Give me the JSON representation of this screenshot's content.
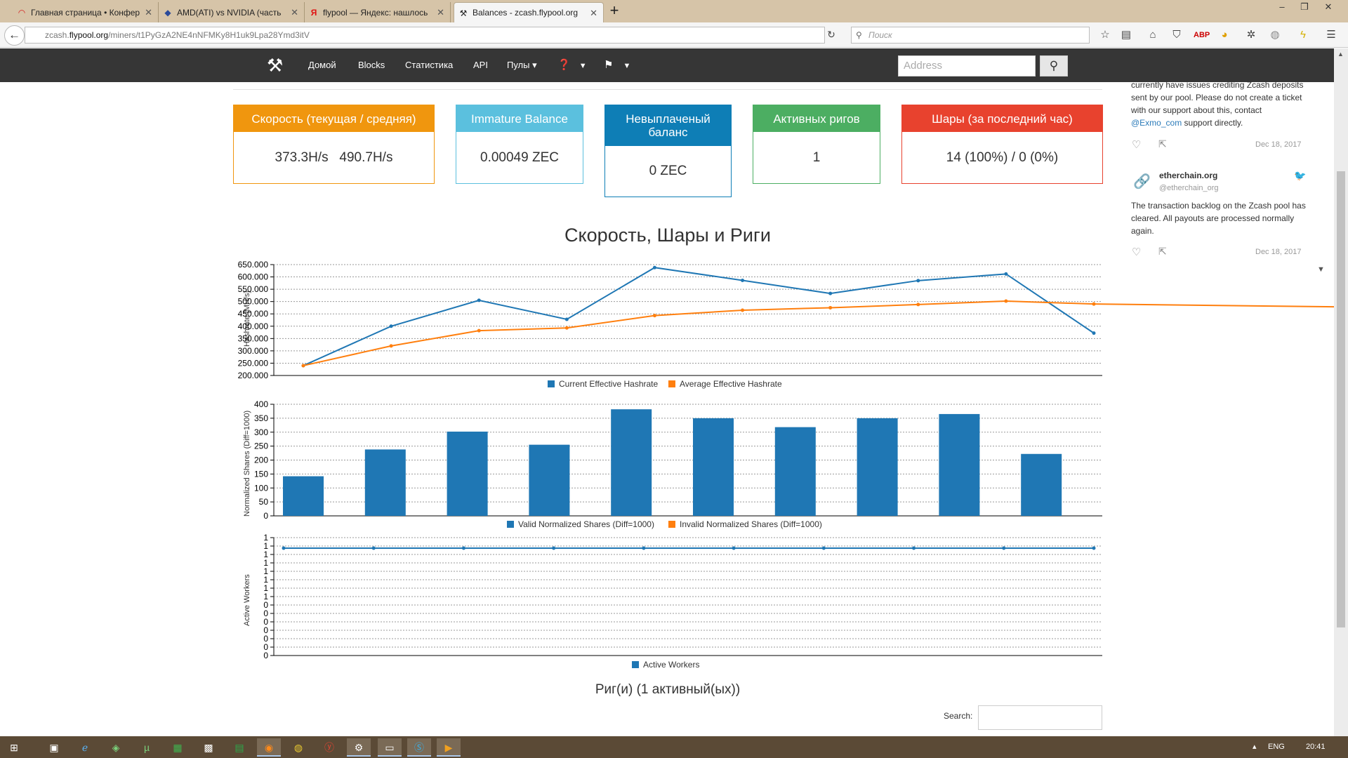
{
  "browser": {
    "tabs": [
      {
        "label": "Главная страница • Конфер",
        "icon": "red-arc-icon"
      },
      {
        "label": "AMD(ATI) vs NVIDIA (часть",
        "icon": "diamond-icon"
      },
      {
        "label": "flypool — Яндекс: нашлось",
        "icon": "yandex-icon"
      },
      {
        "label": "Balances - zcash.flypool.org",
        "icon": "pickaxe-icon"
      }
    ],
    "url_host": "zcash.flypool.org",
    "url_prefix": "zcash.",
    "url_domain": "flypool.org",
    "url_path": "/miners/t1PyGzA2NE4nNFMKy8H1uk9Lpa28Ymd3itV",
    "search_placeholder": "Поиск"
  },
  "site": {
    "nav": [
      "Домой",
      "Blocks",
      "Статистика",
      "API",
      "Пулы"
    ],
    "address_placeholder": "Address"
  },
  "stats": [
    {
      "header": "Скорость (текущая / средняя)",
      "value": "373.3H/s   490.7H/s",
      "color": "#f0960e"
    },
    {
      "header": "Immature Balance",
      "value": "0.00049 ZEC",
      "color": "#5bc0de"
    },
    {
      "header": "Невыплаченый баланс",
      "value": "0 ZEC",
      "color": "#0e7eb6"
    },
    {
      "header": "Активных ригов",
      "value": "1",
      "color": "#4cae62"
    },
    {
      "header": "Шары (за последний час)",
      "value": "14 (100%) / 0 (0%)",
      "color": "#e8422e"
    }
  ],
  "chart_section_title": "Скорость, Шары и Риги",
  "chart_data": [
    {
      "type": "line",
      "ylabel": "Hashrate [MH/s]",
      "yticks": [
        "650.000",
        "600.000",
        "550.000",
        "500.000",
        "450.000",
        "400.000",
        "350.000",
        "300.000",
        "250.000",
        "200.000"
      ],
      "ylim": [
        200000,
        650000
      ],
      "grid": true,
      "legend_position": "bottom",
      "series": [
        {
          "name": "Current Effective Hashrate",
          "color": "#1f77b4",
          "values": [
            240000,
            400000,
            505000,
            428000,
            638000,
            586000,
            533000,
            585000,
            612000,
            372000
          ]
        },
        {
          "name": "Average Effective Hashrate",
          "color": "#ff7f0e",
          "values": [
            240000,
            320000,
            382000,
            393000,
            443000,
            465000,
            475000,
            488000,
            502000,
            490000
          ]
        }
      ]
    },
    {
      "type": "bar",
      "ylabel": "Normalized Shares (Diff=1000)",
      "yticks": [
        "400",
        "350",
        "300",
        "250",
        "200",
        "150",
        "100",
        "50",
        "0"
      ],
      "ylim": [
        0,
        400
      ],
      "grid": true,
      "legend_position": "bottom",
      "series": [
        {
          "name": "Valid Normalized Shares (Diff=1000)",
          "color": "#1f77b4",
          "values": [
            142,
            238,
            302,
            255,
            382,
            350,
            318,
            350,
            365,
            222
          ]
        },
        {
          "name": "Invalid Normalized Shares (Diff=1000)",
          "color": "#ff7f0e",
          "values": [
            0,
            0,
            0,
            0,
            0,
            0,
            0,
            0,
            0,
            0
          ]
        }
      ]
    },
    {
      "type": "line",
      "ylabel": "Active Workers",
      "yticks": [
        "1",
        "1",
        "1",
        "1",
        "1",
        "1",
        "1",
        "1",
        "0",
        "0",
        "0",
        "0",
        "0",
        "0",
        "0"
      ],
      "grid": true,
      "legend_position": "bottom",
      "series": [
        {
          "name": "Active Workers",
          "color": "#1f77b4",
          "values": [
            1,
            1,
            1,
            1,
            1,
            1,
            1,
            1,
            1,
            1
          ]
        }
      ]
    }
  ],
  "twitter": {
    "tweet1_text": "currently have issues crediting Zcash deposits sent by our pool. Please do not create a ticket with our support about this, contact",
    "tweet1_link": "@Exmo_com",
    "tweet1_tail": "support directly.",
    "tweet1_date": "Dec 18, 2017",
    "tweet2_name": "etherchain.org",
    "tweet2_handle": "@etherchain_org",
    "tweet2_text": "The transaction backlog on the Zcash pool has cleared. All payouts are processed normally again.",
    "tweet2_date": "Dec 18, 2017"
  },
  "rigs_title": "Риг(и) (1 активный(ых))",
  "search_label": "Search:",
  "taskbar": {
    "lang": "ENG",
    "time": "20:41"
  }
}
